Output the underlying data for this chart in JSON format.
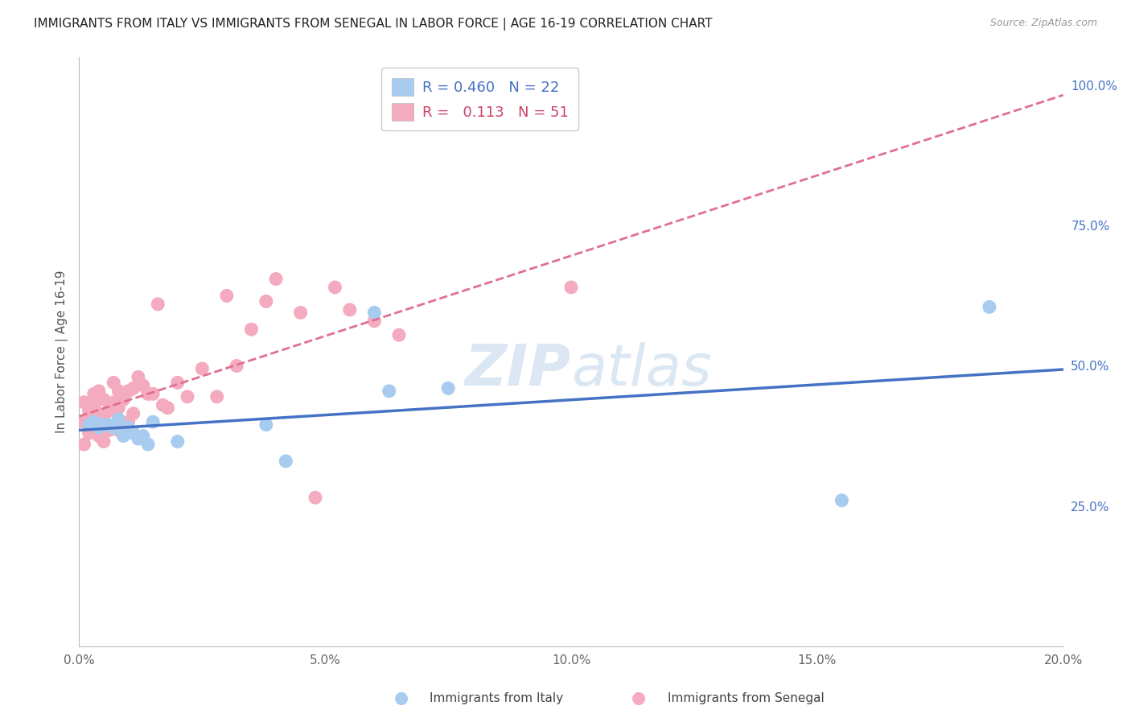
{
  "title": "IMMIGRANTS FROM ITALY VS IMMIGRANTS FROM SENEGAL IN LABOR FORCE | AGE 16-19 CORRELATION CHART",
  "source": "Source: ZipAtlas.com",
  "ylabel": "In Labor Force | Age 16-19",
  "xlim": [
    0.0,
    0.2
  ],
  "ylim": [
    0.0,
    1.05
  ],
  "xtick_labels": [
    "0.0%",
    "5.0%",
    "10.0%",
    "15.0%",
    "20.0%"
  ],
  "xtick_values": [
    0.0,
    0.05,
    0.1,
    0.15,
    0.2
  ],
  "ytick_labels_right": [
    "100.0%",
    "75.0%",
    "50.0%",
    "25.0%"
  ],
  "ytick_values_right": [
    1.0,
    0.75,
    0.5,
    0.25
  ],
  "italy_color": "#A8CCF0",
  "senegal_color": "#F4AABF",
  "italy_line_color": "#4472C4",
  "senegal_line_color": "#E07090",
  "italy_R": 0.46,
  "italy_N": 22,
  "senegal_R": 0.113,
  "senegal_N": 51,
  "legend_label_italy": "Immigrants from Italy",
  "legend_label_senegal": "Immigrants from Senegal",
  "watermark": "ZIPatlas",
  "background_color": "#FFFFFF",
  "grid_color": "#DDDDDD",
  "italy_x": [
    0.002,
    0.003,
    0.004,
    0.005,
    0.006,
    0.007,
    0.008,
    0.009,
    0.01,
    0.011,
    0.012,
    0.013,
    0.014,
    0.015,
    0.02,
    0.038,
    0.042,
    0.06,
    0.063,
    0.075,
    0.155,
    0.185
  ],
  "italy_y": [
    0.395,
    0.4,
    0.39,
    0.395,
    0.395,
    0.39,
    0.405,
    0.375,
    0.39,
    0.38,
    0.37,
    0.375,
    0.36,
    0.4,
    0.365,
    0.395,
    0.33,
    0.595,
    0.455,
    0.46,
    0.26,
    0.605
  ],
  "senegal_x": [
    0.001,
    0.001,
    0.001,
    0.002,
    0.002,
    0.003,
    0.003,
    0.003,
    0.004,
    0.004,
    0.004,
    0.005,
    0.005,
    0.005,
    0.006,
    0.006,
    0.007,
    0.007,
    0.007,
    0.008,
    0.008,
    0.008,
    0.009,
    0.009,
    0.01,
    0.01,
    0.011,
    0.011,
    0.012,
    0.013,
    0.014,
    0.015,
    0.016,
    0.017,
    0.018,
    0.02,
    0.022,
    0.025,
    0.028,
    0.03,
    0.032,
    0.035,
    0.038,
    0.04,
    0.045,
    0.048,
    0.052,
    0.055,
    0.06,
    0.065,
    0.1
  ],
  "senegal_y": [
    0.36,
    0.4,
    0.435,
    0.38,
    0.42,
    0.395,
    0.43,
    0.45,
    0.375,
    0.415,
    0.455,
    0.365,
    0.405,
    0.44,
    0.385,
    0.42,
    0.395,
    0.435,
    0.47,
    0.385,
    0.425,
    0.455,
    0.395,
    0.44,
    0.4,
    0.455,
    0.415,
    0.46,
    0.48,
    0.465,
    0.45,
    0.45,
    0.61,
    0.43,
    0.425,
    0.47,
    0.445,
    0.495,
    0.445,
    0.625,
    0.5,
    0.565,
    0.615,
    0.655,
    0.595,
    0.265,
    0.64,
    0.6,
    0.58,
    0.555,
    0.64
  ]
}
